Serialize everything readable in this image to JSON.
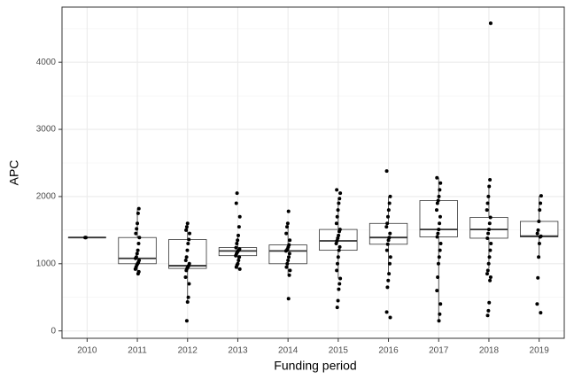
{
  "chart_data": {
    "type": "box",
    "x_label": "Funding period",
    "y_label": "APC",
    "categories": [
      "2010",
      "2011",
      "2012",
      "2013",
      "2014",
      "2015",
      "2016",
      "2017",
      "2018",
      "2019"
    ],
    "whisker_low": [
      1390,
      850,
      430,
      920,
      830,
      780,
      850,
      150,
      930,
      1100
    ],
    "q1": [
      1390,
      1000,
      930,
      1120,
      1000,
      1200,
      1290,
      1400,
      1380,
      1400
    ],
    "median": [
      1390,
      1080,
      970,
      1190,
      1190,
      1340,
      1390,
      1510,
      1510,
      1410
    ],
    "q3": [
      1390,
      1390,
      1360,
      1240,
      1280,
      1510,
      1600,
      1940,
      1690,
      1630
    ],
    "whisker_high": [
      1390,
      1820,
      1600,
      1420,
      1600,
      1970,
      2000,
      2280,
      2150,
      2010
    ],
    "points": [
      [
        1390,
        1390
      ],
      [
        850,
        880,
        920,
        950,
        980,
        1000,
        1020,
        1050,
        1080,
        1100,
        1150,
        1200,
        1300,
        1390,
        1450,
        1520,
        1600,
        1750,
        1820
      ],
      [
        150,
        430,
        500,
        700,
        800,
        900,
        930,
        950,
        970,
        1000,
        1050,
        1100,
        1200,
        1300,
        1360,
        1450,
        1500,
        1550,
        1600
      ],
      [
        920,
        950,
        980,
        1000,
        1050,
        1100,
        1120,
        1150,
        1170,
        1190,
        1200,
        1220,
        1240,
        1300,
        1350,
        1420,
        1550,
        1700,
        1900,
        2050
      ],
      [
        480,
        830,
        900,
        950,
        1000,
        1050,
        1100,
        1150,
        1190,
        1200,
        1220,
        1250,
        1280,
        1350,
        1450,
        1550,
        1600,
        1780
      ],
      [
        350,
        450,
        620,
        700,
        780,
        900,
        1000,
        1100,
        1200,
        1250,
        1300,
        1340,
        1380,
        1420,
        1480,
        1510,
        1600,
        1700,
        1800,
        1900,
        1970,
        2050,
        2100
      ],
      [
        200,
        280,
        650,
        750,
        850,
        1000,
        1100,
        1200,
        1290,
        1350,
        1390,
        1450,
        1550,
        1600,
        1700,
        1800,
        1900,
        2000,
        2380
      ],
      [
        150,
        250,
        400,
        600,
        800,
        1000,
        1100,
        1200,
        1300,
        1400,
        1450,
        1510,
        1600,
        1700,
        1800,
        1900,
        1940,
        2000,
        2100,
        2200,
        2280
      ],
      [
        230,
        300,
        420,
        750,
        800,
        850,
        900,
        1000,
        1100,
        1200,
        1300,
        1380,
        1450,
        1510,
        1600,
        1690,
        1800,
        1900,
        2000,
        2150,
        2250,
        4580
      ],
      [
        270,
        400,
        790,
        1100,
        1300,
        1400,
        1410,
        1450,
        1500,
        1630,
        1800,
        1900,
        2010
      ]
    ],
    "point_color": "#000000",
    "box_color": "#333333",
    "ylim": [
      -110,
      4820
    ],
    "yticks": [
      0,
      1000,
      2000,
      3000,
      4000
    ],
    "minor_yticks": [
      500,
      1500,
      2500,
      3500,
      4500
    ],
    "grid": true
  }
}
